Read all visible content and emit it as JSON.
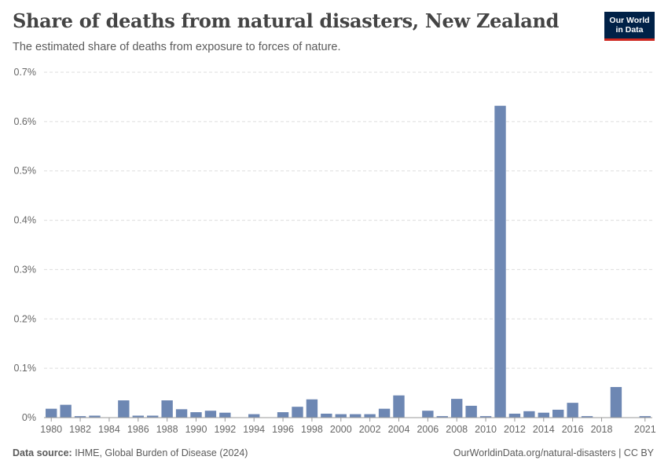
{
  "header": {
    "title": "Share of deaths from natural disasters, New Zealand",
    "subtitle": "The estimated share of deaths from exposure to forces of nature."
  },
  "logo": {
    "line1": "Our World",
    "line2": "in Data"
  },
  "footer": {
    "source_label": "Data source:",
    "source_value": "IHME, Global Burden of Disease (2024)",
    "license": "OurWorldinData.org/natural-disasters | CC BY"
  },
  "colors": {
    "bar": "#6d87b3",
    "grid": "#dddddd",
    "axis": "#999999",
    "logo_bg": "#002147",
    "logo_accent": "#ce261e"
  },
  "chart_data": {
    "type": "bar",
    "title": "Share of deaths from natural disasters, New Zealand",
    "ylim": [
      0,
      0.7
    ],
    "y_ticks": [
      0,
      0.1,
      0.2,
      0.3,
      0.4,
      0.5,
      0.6,
      0.7
    ],
    "y_tick_labels": [
      "0%",
      "0.1%",
      "0.2%",
      "0.3%",
      "0.4%",
      "0.5%",
      "0.6%",
      "0.7%"
    ],
    "x_tick_labels": [
      "1980",
      "1982",
      "1984",
      "1986",
      "1988",
      "1990",
      "1992",
      "1994",
      "1996",
      "1998",
      "2000",
      "2002",
      "2004",
      "2006",
      "2008",
      "2010",
      "2012",
      "2014",
      "2016",
      "2018",
      "2021"
    ],
    "grid": true,
    "categories": [
      "1980",
      "1981",
      "1982",
      "1983",
      "1984",
      "1985",
      "1986",
      "1987",
      "1988",
      "1989",
      "1990",
      "1991",
      "1992",
      "1993",
      "1994",
      "1995",
      "1996",
      "1997",
      "1998",
      "1999",
      "2000",
      "2001",
      "2002",
      "2003",
      "2004",
      "2005",
      "2006",
      "2007",
      "2008",
      "2009",
      "2010",
      "2011",
      "2012",
      "2013",
      "2014",
      "2015",
      "2016",
      "2017",
      "2018",
      "2019",
      "2020",
      "2021"
    ],
    "values": [
      0.018,
      0.026,
      0.003,
      0.004,
      0,
      0.035,
      0.004,
      0.004,
      0.035,
      0.017,
      0.011,
      0.014,
      0.01,
      0,
      0.007,
      0,
      0.011,
      0.022,
      0.037,
      0.008,
      0.007,
      0.007,
      0.007,
      0.018,
      0.045,
      0,
      0.014,
      0.003,
      0.038,
      0.024,
      0.003,
      0.632,
      0.008,
      0.013,
      0.01,
      0.016,
      0.03,
      0.003,
      0,
      0.062,
      0,
      0.003
    ]
  }
}
